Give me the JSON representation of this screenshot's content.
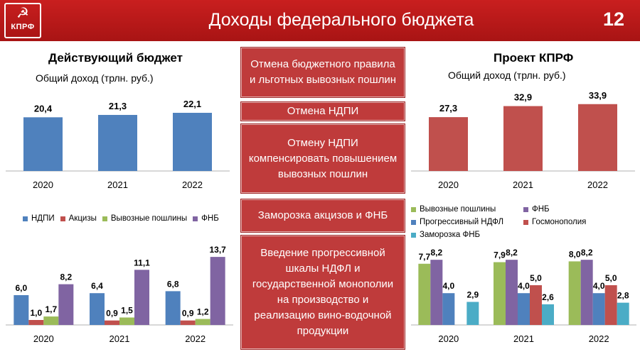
{
  "header": {
    "title": "Доходы федерального бюджета",
    "slide_number": "12",
    "logo_text": "КПРФ"
  },
  "left": {
    "heading": "Действующий бюджет",
    "subheading": "Общий доход (трлн. руб.)"
  },
  "right": {
    "heading": "Проект КПРФ",
    "subheading": "Общий доход (трлн. руб.)"
  },
  "panels": [
    "Отмена бюджетного правила и льготных вывозных пошлин",
    "Отмена НДПИ",
    "Отмену НДПИ компенсировать повышением вывозных пошлин",
    "Заморозка акцизов и ФНБ",
    "Введение прогрессивной шкалы НДФЛ и государственной монополии на производство и реализацию вино-водочной продукции"
  ],
  "colors": {
    "blue": "#4f81bd",
    "red": "#c0504d",
    "green": "#9bbb59",
    "purple": "#8064a2",
    "teal": "#4bacc6",
    "header": "#b71c1c"
  },
  "icons": {
    "logo": "hammer-sickle-icon"
  },
  "chart_data": [
    {
      "type": "bar",
      "title": "Действующий бюджет",
      "subtitle": "Общий доход (трлн. руб.)",
      "categories": [
        "2020",
        "2021",
        "2022"
      ],
      "series": [
        {
          "values": [
            20.4,
            21.3,
            22.1
          ]
        }
      ],
      "labels": [
        "20,4",
        "21,3",
        "22,1"
      ]
    },
    {
      "type": "bar",
      "title": "Проект КПРФ",
      "subtitle": "Общий доход (трлн. руб.)",
      "categories": [
        "2020",
        "2021",
        "2022"
      ],
      "series": [
        {
          "values": [
            27.3,
            32.9,
            33.9
          ]
        }
      ],
      "labels": [
        "27,3",
        "32,9",
        "33,9"
      ]
    },
    {
      "type": "bar",
      "categories": [
        "2020",
        "2021",
        "2022"
      ],
      "legend": "top",
      "series": [
        {
          "name": "НДПИ",
          "values": [
            6.0,
            6.4,
            6.8
          ],
          "labels": [
            "6,0",
            "6,4",
            "6,8"
          ]
        },
        {
          "name": "Акцизы",
          "values": [
            1.0,
            0.9,
            0.9
          ],
          "labels": [
            "1,0",
            "0,9",
            "0,9"
          ]
        },
        {
          "name": "Вывозные пошлины",
          "values": [
            1.7,
            1.5,
            1.2
          ],
          "labels": [
            "1,7",
            "1,5",
            "1,2"
          ]
        },
        {
          "name": "ФНБ",
          "values": [
            8.2,
            11.1,
            13.7
          ],
          "labels": [
            "8,2",
            "11,1",
            "13,7"
          ]
        }
      ]
    },
    {
      "type": "bar",
      "categories": [
        "2020",
        "2021",
        "2022"
      ],
      "legend": "top",
      "series": [
        {
          "name": "Вывозные пошлины",
          "values": [
            7.7,
            7.9,
            8.0
          ],
          "labels": [
            "7,7",
            "7,9",
            "8,0"
          ]
        },
        {
          "name": "ФНБ",
          "values": [
            8.2,
            8.2,
            8.2
          ],
          "labels": [
            "8,2",
            "8,2",
            "8,2"
          ]
        },
        {
          "name": "Прогрессивный НДФЛ",
          "values": [
            4.0,
            4.0,
            4.0
          ],
          "labels": [
            "4,0",
            "4,0",
            "4,0"
          ]
        },
        {
          "name": "Госмонополия",
          "values": [
            null,
            5.0,
            5.0
          ],
          "labels": [
            "",
            "5,0",
            "5,0"
          ]
        },
        {
          "name": "Заморозка ФНБ",
          "values": [
            2.9,
            2.6,
            2.8
          ],
          "labels": [
            "2,9",
            "2,6",
            "2,8"
          ]
        }
      ]
    }
  ]
}
